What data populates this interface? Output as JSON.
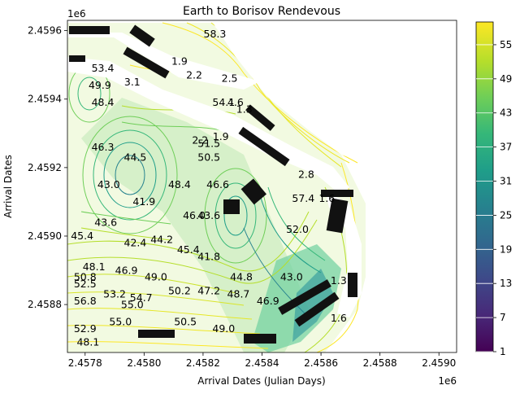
{
  "chart_data": {
    "type": "contour",
    "title": "Earth to Borisov Rendevous",
    "xlabel": "Arrival Dates (Julian Days)",
    "ylabel": "Arrival Dates",
    "x_offset_label": "1e6",
    "y_offset_label": "1e6",
    "xlim": [
      2.45774,
      2.45906
    ],
    "ylim": [
      2.45866,
      2.45963
    ],
    "x_ticks": [
      2.4578,
      2.458,
      2.4582,
      2.4584,
      2.4586,
      2.4588,
      2.459
    ],
    "x_tick_labels": [
      "2.4578",
      "2.4580",
      "2.4582",
      "2.4584",
      "2.4586",
      "2.4588",
      "2.4590"
    ],
    "y_ticks": [
      2.4588,
      2.459,
      2.4592,
      2.4594,
      2.4596
    ],
    "y_tick_labels": [
      "2.4588",
      "2.4590",
      "2.4592",
      "2.4594",
      "2.4596"
    ],
    "colorbar": {
      "colormap": "viridis",
      "range": [
        1,
        59
      ],
      "ticks": [
        1,
        7,
        13,
        19,
        25,
        31,
        37,
        43,
        49,
        55
      ],
      "tick_labels": [
        "1",
        "7",
        "13",
        "19",
        "25",
        "31",
        "37",
        "43",
        "49",
        "55"
      ]
    },
    "contour_level_labels": [
      {
        "label": "58.3",
        "x": 2.45824,
        "y": 2.45958,
        "value": 58.3
      },
      {
        "label": "2.2",
        "x": 2.45817,
        "y": 2.45946,
        "value": 2.2
      },
      {
        "label": "2.5",
        "x": 2.45829,
        "y": 2.45945,
        "value": 2.5
      },
      {
        "label": "1.9",
        "x": 2.45812,
        "y": 2.4595,
        "value": 1.9
      },
      {
        "label": "3.1",
        "x": 2.45796,
        "y": 2.45944,
        "value": 3.1
      },
      {
        "label": "53.4",
        "x": 2.45786,
        "y": 2.45948,
        "value": 53.4
      },
      {
        "label": "49.9",
        "x": 2.45785,
        "y": 2.45943,
        "value": 49.9
      },
      {
        "label": "48.4",
        "x": 2.45786,
        "y": 2.45938,
        "value": 48.4
      },
      {
        "label": "54.1",
        "x": 2.45827,
        "y": 2.45938,
        "value": 54.1
      },
      {
        "label": "4.6",
        "x": 2.45831,
        "y": 2.45938,
        "value": 4.6
      },
      {
        "label": "1.3",
        "x": 2.45834,
        "y": 2.45936,
        "value": 1.3
      },
      {
        "label": "2.2",
        "x": 2.45819,
        "y": 2.45927,
        "value": 2.2
      },
      {
        "label": "1.9",
        "x": 2.45826,
        "y": 2.45928,
        "value": 1.9
      },
      {
        "label": "51.5",
        "x": 2.45822,
        "y": 2.45926,
        "value": 51.5
      },
      {
        "label": "50.5",
        "x": 2.45822,
        "y": 2.45922,
        "value": 50.5
      },
      {
        "label": "46.3",
        "x": 2.45786,
        "y": 2.45925,
        "value": 46.3
      },
      {
        "label": "44.5",
        "x": 2.45797,
        "y": 2.45922,
        "value": 44.5
      },
      {
        "label": "43.0",
        "x": 2.45788,
        "y": 2.45914,
        "value": 43.0
      },
      {
        "label": "48.4",
        "x": 2.45812,
        "y": 2.45914,
        "value": 48.4
      },
      {
        "label": "46.6",
        "x": 2.45825,
        "y": 2.45914,
        "value": 46.6
      },
      {
        "label": "2.8",
        "x": 2.45855,
        "y": 2.45917,
        "value": 2.8
      },
      {
        "label": "57.4",
        "x": 2.45854,
        "y": 2.4591,
        "value": 57.4
      },
      {
        "label": "1.6",
        "x": 2.45862,
        "y": 2.4591,
        "value": 1.6
      },
      {
        "label": "41.9",
        "x": 2.458,
        "y": 2.45909,
        "value": 41.9
      },
      {
        "label": "43.6",
        "x": 2.45787,
        "y": 2.45903,
        "value": 43.6
      },
      {
        "label": "45.4",
        "x": 2.45779,
        "y": 2.45899,
        "value": 45.4
      },
      {
        "label": "42.4",
        "x": 2.45797,
        "y": 2.45897,
        "value": 42.4
      },
      {
        "label": "44.2",
        "x": 2.45806,
        "y": 2.45898,
        "value": 44.2
      },
      {
        "label": "45.4",
        "x": 2.45815,
        "y": 2.45895,
        "value": 45.4
      },
      {
        "label": "46.0",
        "x": 2.45817,
        "y": 2.45905,
        "value": 46.0
      },
      {
        "label": "43.6",
        "x": 2.45822,
        "y": 2.45905,
        "value": 43.6
      },
      {
        "label": "41.8",
        "x": 2.45822,
        "y": 2.45893,
        "value": 41.8
      },
      {
        "label": "52.0",
        "x": 2.45852,
        "y": 2.45901,
        "value": 52.0
      },
      {
        "label": "48.1",
        "x": 2.45783,
        "y": 2.4589,
        "value": 48.1
      },
      {
        "label": "46.9",
        "x": 2.45794,
        "y": 2.45889,
        "value": 46.9
      },
      {
        "label": "49.0",
        "x": 2.45804,
        "y": 2.45887,
        "value": 49.0
      },
      {
        "label": "50.8",
        "x": 2.4578,
        "y": 2.45887,
        "value": 50.8
      },
      {
        "label": "52.5",
        "x": 2.4578,
        "y": 2.45885,
        "value": 52.5
      },
      {
        "label": "53.2",
        "x": 2.4579,
        "y": 2.45882,
        "value": 53.2
      },
      {
        "label": "54.7",
        "x": 2.45799,
        "y": 2.45881,
        "value": 54.7
      },
      {
        "label": "55.0",
        "x": 2.45796,
        "y": 2.45879,
        "value": 55.0
      },
      {
        "label": "56.8",
        "x": 2.4578,
        "y": 2.4588,
        "value": 56.8
      },
      {
        "label": "50.2",
        "x": 2.45812,
        "y": 2.45883,
        "value": 50.2
      },
      {
        "label": "47.2",
        "x": 2.45822,
        "y": 2.45883,
        "value": 47.2
      },
      {
        "label": "44.8",
        "x": 2.45833,
        "y": 2.45887,
        "value": 44.8
      },
      {
        "label": "48.7",
        "x": 2.45832,
        "y": 2.45882,
        "value": 48.7
      },
      {
        "label": "43.0",
        "x": 2.4585,
        "y": 2.45887,
        "value": 43.0
      },
      {
        "label": "46.9",
        "x": 2.45842,
        "y": 2.4588,
        "value": 46.9
      },
      {
        "label": "55.0",
        "x": 2.45792,
        "y": 2.45874,
        "value": 55.0
      },
      {
        "label": "50.5",
        "x": 2.45814,
        "y": 2.45874,
        "value": 50.5
      },
      {
        "label": "49.0",
        "x": 2.45827,
        "y": 2.45872,
        "value": 49.0
      },
      {
        "label": "52.9",
        "x": 2.4578,
        "y": 2.45872,
        "value": 52.9
      },
      {
        "label": "48.1",
        "x": 2.45781,
        "y": 2.45868,
        "value": 48.1
      },
      {
        "label": "1.6",
        "x": 2.45866,
        "y": 2.45875,
        "value": 1.6
      },
      {
        "label": "1.3",
        "x": 2.45866,
        "y": 2.45886,
        "value": 1.3
      }
    ]
  }
}
